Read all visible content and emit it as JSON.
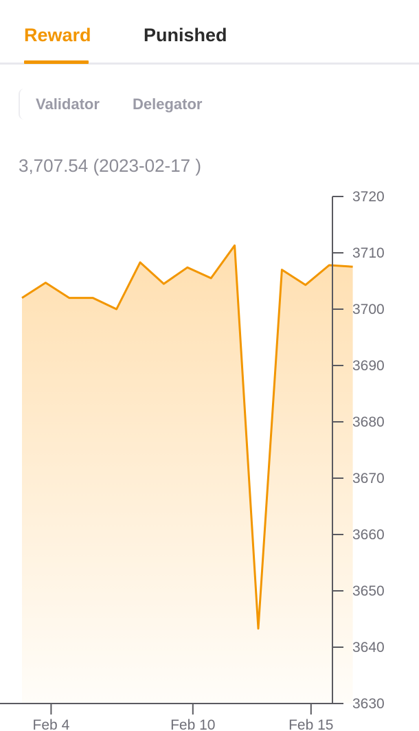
{
  "tabs": [
    {
      "label": "Reward",
      "active": true
    },
    {
      "label": "Punished",
      "active": false
    }
  ],
  "segment": {
    "items": [
      "Validator",
      "Delegator"
    ]
  },
  "readout": {
    "value": "3,707.54",
    "date": "(2023-02-17 )"
  },
  "colors": {
    "accent": "#f29600",
    "tab_inactive": "#2b2b2b",
    "muted": "#9a9aa6",
    "fill_top": "#ffdfb0",
    "fill_bottom": "#fffdf9",
    "axis": "#5a5a60"
  },
  "chart_data": {
    "type": "area",
    "x": [
      "Feb 3",
      "Feb 4",
      "Feb 5",
      "Feb 6",
      "Feb 7",
      "Feb 8",
      "Feb 9",
      "Feb 10",
      "Feb 11",
      "Feb 12",
      "Feb 13",
      "Feb 14",
      "Feb 15",
      "Feb 16",
      "Feb 17"
    ],
    "series": [
      {
        "values": [
          3702.0,
          3704.7,
          3702.0,
          3702.0,
          3700.0,
          3708.3,
          3704.5,
          3707.4,
          3705.5,
          3711.3,
          3643.3,
          3707.0,
          3704.3,
          3707.8,
          3707.54
        ]
      }
    ],
    "ylim": [
      3630,
      3720
    ],
    "yticks": [
      3720,
      3710,
      3700,
      3690,
      3680,
      3670,
      3660,
      3650,
      3640,
      3630
    ],
    "xtick_labels": [
      "Feb 4",
      "Feb 10",
      "Feb 15"
    ],
    "xtick_positions": [
      "Feb 4",
      "Feb 10",
      "Feb 15"
    ],
    "yaxis_side": "right",
    "grid": false,
    "title": "",
    "xlabel": "",
    "ylabel": ""
  }
}
